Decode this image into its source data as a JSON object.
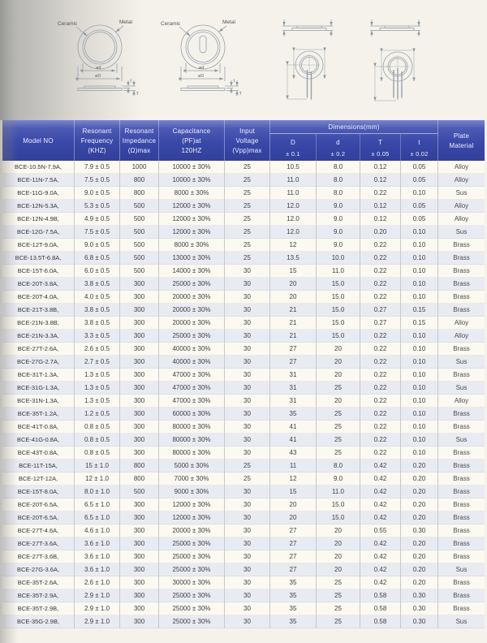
{
  "diagrams": {
    "front_view": {
      "ceramic_label": "Ceramic",
      "metal_label": "Metal"
    },
    "dimension_labels": {
      "inner_diameter": "ød",
      "outer_diameter": "øD",
      "ceramic_thickness": "t",
      "total_thickness": "T"
    }
  },
  "table": {
    "columns": {
      "model": [
        "Model NO"
      ],
      "frequency": [
        "Resonant",
        "Frequency",
        "(KHZ)"
      ],
      "impedance": [
        "Resonant",
        "Impedance",
        "(Ω)max"
      ],
      "capacitance": [
        "Capacitance",
        "(PF)at",
        "120HZ"
      ],
      "voltage": [
        "Input",
        "Voltage",
        "(Vpp)max"
      ],
      "plate": [
        "Plate",
        "Material"
      ]
    },
    "dims": {
      "title": "Dimensions(mm)",
      "sub": [
        {
          "letter": "D",
          "tol": "± 0.1"
        },
        {
          "letter": "d",
          "tol": "± 0.2"
        },
        {
          "letter": "T",
          "tol": "± 0.05"
        },
        {
          "letter": "t",
          "tol": "± 0.02"
        }
      ]
    },
    "rows": [
      [
        "BCE-10.5N-7.9A,",
        "7.9 ± 0.5",
        "1000",
        "10000 ± 30%",
        "25",
        "10.5",
        "8.0",
        "0.12",
        "0.05",
        "Alloy"
      ],
      [
        "BCE-11N-7.5A,",
        "7.5 ± 0.5",
        "800",
        "10000 ± 30%",
        "25",
        "11.0",
        "8.0",
        "0.12",
        "0.05",
        "Alloy"
      ],
      [
        "BCE-11G-9.0A,",
        "9.0 ± 0.5",
        "800",
        "8000 ± 30%",
        "25",
        "11.0",
        "8.0",
        "0.22",
        "0.10",
        "Sus"
      ],
      [
        "BCE-12N-5.3A,",
        "5.3 ± 0.5",
        "500",
        "12000 ± 30%",
        "25",
        "12.0",
        "9.0",
        "0.12",
        "0.05",
        "Alloy"
      ],
      [
        "BCE-12N-4.9B,",
        "4.9 ± 0.5",
        "500",
        "12000 ± 30%",
        "25",
        "12.0",
        "9.0",
        "0.12",
        "0.05",
        "Alloy"
      ],
      [
        "BCE-12G-7.5A,",
        "7.5 ± 0.5",
        "500",
        "12000 ± 30%",
        "25",
        "12.0",
        "9.0",
        "0.20",
        "0.10",
        "Sus"
      ],
      [
        "BCE-12T-9.0A,",
        "9.0 ± 0.5",
        "500",
        "8000 ± 30%",
        "25",
        "12",
        "9.0",
        "0.22",
        "0.10",
        "Brass"
      ],
      [
        "BCE-13.5T-6.8A,",
        "6.8 ± 0.5",
        "500",
        "13000 ± 30%",
        "25",
        "13.5",
        "10.0",
        "0.22",
        "0.10",
        "Brass"
      ],
      [
        "BCE-15T-6.0A,",
        "6.0 ± 0.5",
        "500",
        "14000 ± 30%",
        "30",
        "15",
        "11.0",
        "0.22",
        "0.10",
        "Brass"
      ],
      [
        "BCE-20T-3.8A,",
        "3.8 ± 0.5",
        "300",
        "25000 ± 30%",
        "30",
        "20",
        "15.0",
        "0.22",
        "0.10",
        "Brass"
      ],
      [
        "BCE-20T-4.0A,",
        "4.0 ± 0.5",
        "300",
        "20000 ± 30%",
        "30",
        "20",
        "15.0",
        "0.22",
        "0.10",
        "Brass"
      ],
      [
        "BCE-21T-3.8B,",
        "3.8 ± 0.5",
        "300",
        "20000 ± 30%",
        "30",
        "21",
        "15.0",
        "0.27",
        "0.15",
        "Brass"
      ],
      [
        "BCE-21N-3.8B,",
        "3.8 ± 0.5",
        "300",
        "20000 ± 30%",
        "30",
        "21",
        "15.0",
        "0.27",
        "0.15",
        "Alloy"
      ],
      [
        "BCE-21N-3.3A,",
        "3.3 ± 0.5",
        "300",
        "25000 ± 30%",
        "30",
        "21",
        "15.0",
        "0.22",
        "0.10",
        "Alloy"
      ],
      [
        "BCE-27T-2.6A,",
        "2.6 ± 0.5",
        "300",
        "40000 ± 30%",
        "30",
        "27",
        "20",
        "0.22",
        "0.10",
        "Brass"
      ],
      [
        "BCE-27G-2.7A,",
        "2.7 ± 0.5",
        "300",
        "40000 ± 30%",
        "30",
        "27",
        "20",
        "0.22",
        "0.10",
        "Sus"
      ],
      [
        "BCE-31T-1.3A,",
        "1.3 ± 0.5",
        "300",
        "47000 ± 30%",
        "30",
        "31",
        "20",
        "0.22",
        "0.10",
        "Brass"
      ],
      [
        "BCE-31G-1.3A,",
        "1.3 ± 0.5",
        "300",
        "47000 ± 30%",
        "30",
        "31",
        "25",
        "0.22",
        "0.10",
        "Sus"
      ],
      [
        "BCE-31N-1.3A,",
        "1.3 ± 0.5",
        "300",
        "47000 ± 30%",
        "30",
        "31",
        "20",
        "0.22",
        "0.10",
        "Alloy"
      ],
      [
        "BCE-35T-1.2A,",
        "1.2 ± 0.5",
        "300",
        "60000 ± 30%",
        "30",
        "35",
        "25",
        "0.22",
        "0.10",
        "Brass"
      ],
      [
        "BCE-41T-0.8A,",
        "0.8 ± 0.5",
        "300",
        "80000 ± 30%",
        "30",
        "41",
        "25",
        "0.22",
        "0.10",
        "Brass"
      ],
      [
        "BCE-41G-0.8A,",
        "0.8 ± 0.5",
        "300",
        "80000 ± 30%",
        "30",
        "41",
        "25",
        "0.22",
        "0.10",
        "Sus"
      ],
      [
        "BCE-43T-0.8A,",
        "0.8 ± 0.5",
        "300",
        "80000 ± 30%",
        "30",
        "43",
        "25",
        "0.22",
        "0.10",
        "Brass"
      ],
      [
        "BCE-11T-15A,",
        "15 ± 1.0",
        "800",
        "5000 ± 30%",
        "25",
        "11",
        "8.0",
        "0.42",
        "0.20",
        "Brass"
      ],
      [
        "BCE-12T-12A,",
        "12 ± 1.0",
        "800",
        "7000 ± 30%",
        "25",
        "12",
        "9.0",
        "0.42",
        "0.20",
        "Brass"
      ],
      [
        "BCE-15T-8.0A,",
        "8.0 ± 1.0",
        "500",
        "9000 ± 30%",
        "30",
        "15",
        "11.0",
        "0.42",
        "0.20",
        "Brass"
      ],
      [
        "BCE-20T-6.5A,",
        "6.5 ± 1.0",
        "300",
        "12000 ± 30%",
        "30",
        "20",
        "15.0",
        "0.42",
        "0.20",
        "Brass"
      ],
      [
        "BCE-20T-6.5A,",
        "6.5 ± 1.0",
        "300",
        "12000 ± 30%",
        "30",
        "20",
        "15.0",
        "0.42",
        "0.20",
        "Brass"
      ],
      [
        "BCE-27T-4.6A,",
        "4.6 ± 1.0",
        "300",
        "20000 ± 30%",
        "30",
        "27",
        "20",
        "0.55",
        "0.30",
        "Brass"
      ],
      [
        "BCE-27T-3.6A,",
        "3.6 ± 1.0",
        "300",
        "25000 ± 30%",
        "30",
        "27",
        "20",
        "0.42",
        "0.20",
        "Brass"
      ],
      [
        "BCE-27T-3.6B,",
        "3.6 ± 1.0",
        "300",
        "25000 ± 30%",
        "30",
        "27",
        "20",
        "0.42",
        "0.20",
        "Brass"
      ],
      [
        "BCE-27G-3.6A,",
        "3.6 ± 1.0",
        "300",
        "25000 ± 30%",
        "30",
        "27",
        "20",
        "0.42",
        "0.20",
        "Sus"
      ],
      [
        "BCE-35T-2.6A,",
        "2.6 ± 1.0",
        "300",
        "30000 ± 30%",
        "30",
        "35",
        "25",
        "0.42",
        "0.20",
        "Brass"
      ],
      [
        "BCE-35T-2.9A,",
        "2.9 ± 1.0",
        "300",
        "25000 ± 30%",
        "30",
        "35",
        "25",
        "0.58",
        "0.30",
        "Brass"
      ],
      [
        "BCE-35T-2.9B,",
        "2.9 ± 1.0",
        "300",
        "25000 ± 30%",
        "30",
        "35",
        "25",
        "0.58",
        "0.30",
        "Brass"
      ],
      [
        "BCE-35G-2.9B,",
        "2.9 ± 1.0",
        "300",
        "25000 ± 30%",
        "30",
        "35",
        "25",
        "0.58",
        "0.30",
        "Sus"
      ]
    ]
  },
  "colors": {
    "header_background": "#3c4aab",
    "header_background_light": "#7a86c9",
    "header_text": "#eef0fa",
    "row_stripe_cream": "#fbf9f0",
    "row_stripe_blue": "#e9ebf2",
    "body_text": "#3f4145",
    "diagram_line": "#98a0af",
    "paper": "#f4f2ea"
  }
}
